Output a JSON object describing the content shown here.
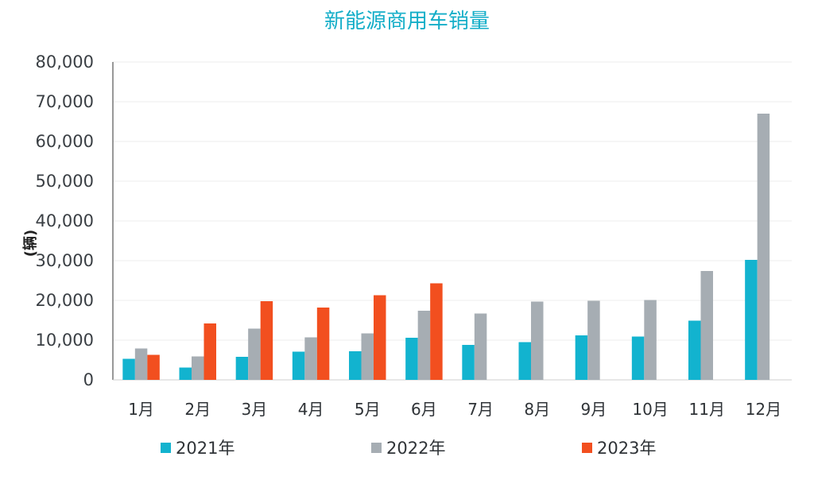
{
  "chart_data": {
    "type": "bar",
    "title": "新能源商用车销量",
    "ylabel": "(辆)",
    "xlabel": "",
    "categories": [
      "1月",
      "2月",
      "3月",
      "4月",
      "5月",
      "6月",
      "7月",
      "8月",
      "9月",
      "10月",
      "11月",
      "12月"
    ],
    "ylim": [
      0,
      80000
    ],
    "yticks": [
      "0",
      "10,000",
      "20,000",
      "30,000",
      "40,000",
      "50,000",
      "60,000",
      "70,000",
      "80,000"
    ],
    "ytick_values": [
      0,
      10000,
      20000,
      30000,
      40000,
      50000,
      60000,
      70000,
      80000
    ],
    "grid": true,
    "legend_position": "bottom",
    "series": [
      {
        "name": "2021年",
        "color": "#12b3cf",
        "values": [
          5300,
          3100,
          5800,
          7100,
          7200,
          10600,
          8800,
          9500,
          11200,
          10900,
          14900,
          30200
        ]
      },
      {
        "name": "2022年",
        "color": "#a6adb3",
        "values": [
          7900,
          5900,
          12900,
          10700,
          11700,
          17400,
          16700,
          19700,
          19900,
          20100,
          27400,
          67000
        ]
      },
      {
        "name": "2023年",
        "color": "#f24f1f",
        "values": [
          6300,
          14200,
          19800,
          18200,
          21300,
          24300,
          null,
          null,
          null,
          null,
          null,
          null
        ]
      }
    ],
    "title_color": "#14aec8"
  }
}
